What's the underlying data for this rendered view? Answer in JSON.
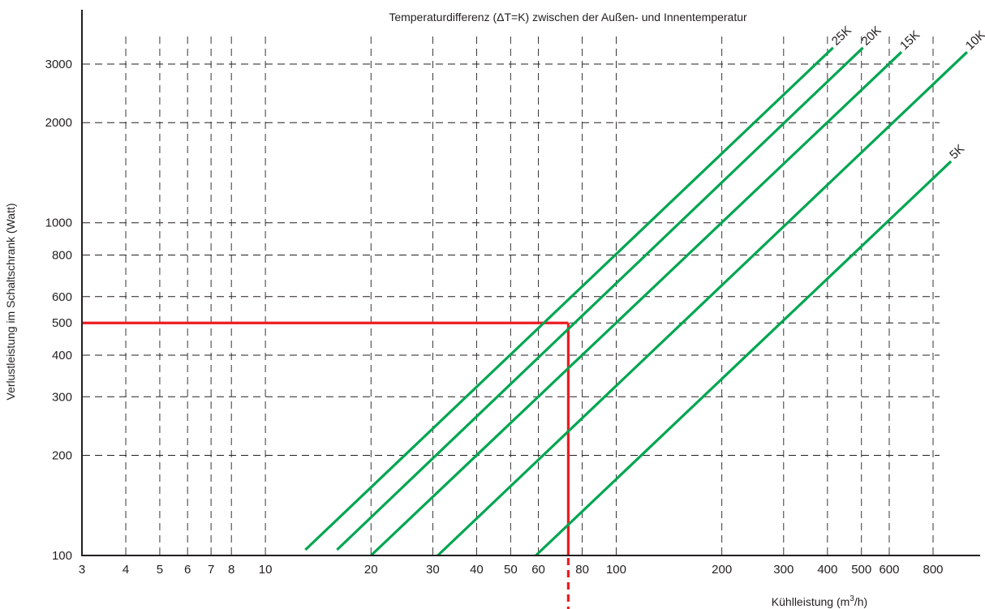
{
  "chart_data": {
    "type": "line",
    "title": "Temperaturdifferenz (ΔT=K) zwischen der Außen- und Innentemperatur",
    "xlabel_prefix": "Kühlleistung (m",
    "xlabel_sup": "3",
    "xlabel_suffix": "/h)",
    "ylabel": "Verlustleistung im Schaltschrank (Watt)",
    "x_scale": "log",
    "y_scale": "log",
    "xlim": [
      3,
      1250
    ],
    "ylim": [
      100,
      4200
    ],
    "grid": true,
    "x_ticks": [
      3,
      4,
      5,
      6,
      7,
      8,
      10,
      20,
      30,
      40,
      50,
      60,
      80,
      100,
      200,
      300,
      400,
      500,
      600,
      800
    ],
    "x_tick_labels": [
      "3",
      "4",
      "5",
      "6",
      "7",
      "8",
      "10",
      "20",
      "30",
      "40",
      "50",
      "60",
      "80",
      "100",
      "200",
      "300",
      "400",
      "500",
      "600",
      "800"
    ],
    "y_ticks": [
      100,
      200,
      300,
      400,
      500,
      600,
      800,
      1000,
      2000,
      3000
    ],
    "y_tick_labels": [
      "100",
      "200",
      "300",
      "400",
      "500",
      "600",
      "800",
      "1000",
      "2000",
      "3000"
    ],
    "series": [
      {
        "name": "25K",
        "x": [
          13,
          415
        ],
        "y": [
          104,
          3360
        ],
        "color": "#00a651"
      },
      {
        "name": "20K",
        "x": [
          16,
          505
        ],
        "y": [
          104,
          3360
        ],
        "color": "#00a651"
      },
      {
        "name": "15K",
        "x": [
          20,
          650
        ],
        "y": [
          100,
          3260
        ],
        "color": "#00a651"
      },
      {
        "name": "10K",
        "x": [
          31,
          1000
        ],
        "y": [
          100,
          3260
        ],
        "color": "#00a651"
      },
      {
        "name": "5K",
        "x": [
          59,
          900
        ],
        "y": [
          100,
          1530
        ],
        "color": "#00a651"
      }
    ],
    "reference_lines": {
      "color": "#ed1c24",
      "point": {
        "x": 73,
        "y": 500
      }
    }
  }
}
